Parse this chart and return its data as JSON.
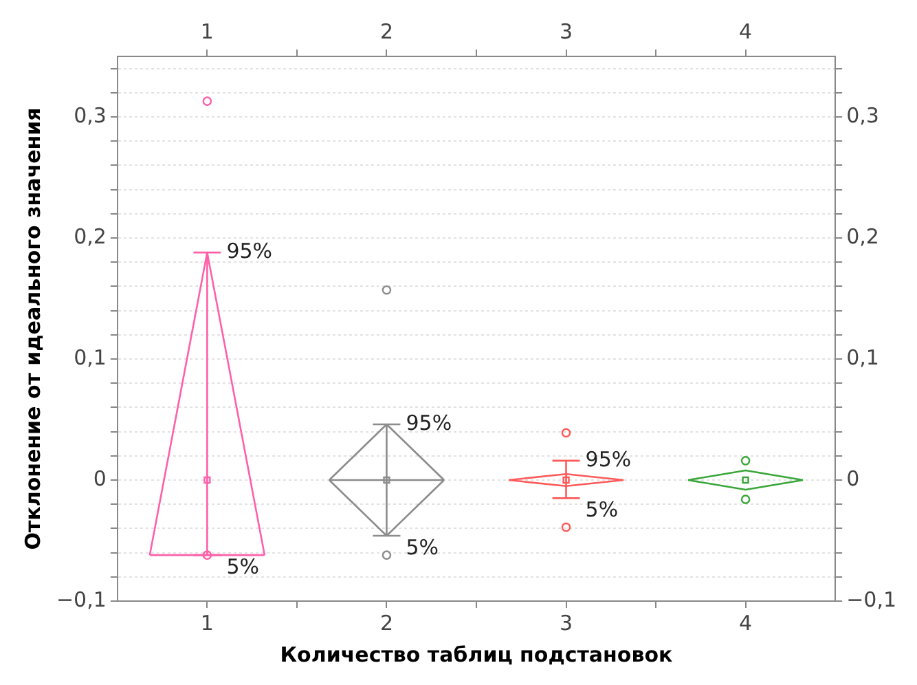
{
  "chart_data": {
    "type": "scatter",
    "xlabel": "Количество таблиц подстановок",
    "ylabel": "Отклонение от идеального значения",
    "xlim": [
      0.5,
      4.5
    ],
    "xticks": [
      1,
      {
        "value": 1.5,
        "label": null
      },
      2,
      {
        "value": 2.5,
        "label": null
      },
      3,
      {
        "value": 3.5,
        "label": null
      },
      4
    ],
    "x2lim": [
      0.5,
      4.5
    ],
    "x2ticks": [
      1,
      {
        "value": 1.5,
        "label": null
      },
      2,
      {
        "value": 2.5,
        "label": null
      },
      3,
      {
        "value": 3.5,
        "label": null
      },
      4
    ],
    "ylim": [
      -0.1,
      0.35
    ],
    "yticks": [
      {
        "value": -0.1,
        "label": "−0,1"
      },
      {
        "value": -0.08,
        "label": null
      },
      {
        "value": -0.06,
        "label": null
      },
      {
        "value": -0.04,
        "label": null
      },
      {
        "value": -0.02,
        "label": null
      },
      0,
      {
        "value": 0.02,
        "label": null
      },
      {
        "value": 0.04,
        "label": null
      },
      {
        "value": 0.06,
        "label": null
      },
      {
        "value": 0.08,
        "label": null
      },
      {
        "value": 0.1,
        "label": "0,1"
      },
      {
        "value": 0.12,
        "label": null
      },
      {
        "value": 0.14,
        "label": null
      },
      {
        "value": 0.16,
        "label": null
      },
      {
        "value": 0.18,
        "label": null
      },
      {
        "value": 0.2,
        "label": "0,2"
      },
      {
        "value": 0.22,
        "label": null
      },
      {
        "value": 0.24,
        "label": null
      },
      {
        "value": 0.26,
        "label": null
      },
      {
        "value": 0.28,
        "label": null
      },
      {
        "value": 0.3,
        "label": "0,3"
      },
      {
        "value": 0.32,
        "label": null
      },
      {
        "value": 0.34,
        "label": null
      }
    ],
    "y2lim": [
      -0.1,
      0.35
    ],
    "y2ticks": [
      {
        "value": -0.1,
        "label": "−0,1"
      },
      {
        "value": -0.08,
        "label": null
      },
      {
        "value": -0.06,
        "label": null
      },
      {
        "value": -0.04,
        "label": null
      },
      {
        "value": -0.02,
        "label": null
      },
      0,
      {
        "value": 0.02,
        "label": null
      },
      {
        "value": 0.04,
        "label": null
      },
      {
        "value": 0.06,
        "label": null
      },
      {
        "value": 0.08,
        "label": null
      },
      {
        "value": 0.1,
        "label": "0,1"
      },
      {
        "value": 0.12,
        "label": null
      },
      {
        "value": 0.14,
        "label": null
      },
      {
        "value": 0.16,
        "label": null
      },
      {
        "value": 0.18,
        "label": null
      },
      {
        "value": 0.2,
        "label": "0,2"
      },
      {
        "value": 0.22,
        "label": null
      },
      {
        "value": 0.24,
        "label": null
      },
      {
        "value": 0.26,
        "label": null
      },
      {
        "value": 0.28,
        "label": null
      },
      {
        "value": 0.3,
        "label": "0,3"
      },
      {
        "value": 0.32,
        "label": null
      },
      {
        "value": 0.34,
        "label": null
      }
    ],
    "grid": "y",
    "legend": false,
    "series": [
      {
        "type": "line",
        "marker": "none",
        "color": "#ff5fa8",
        "x": [
          0.68,
          1,
          1.32
        ],
        "values": [
          -0.062,
          0.188,
          -0.062
        ]
      },
      {
        "type": "line",
        "marker": "none",
        "color": "#ff5fa8",
        "x": [
          0.68,
          1.32
        ],
        "values": [
          -0.062,
          -0.062
        ]
      },
      {
        "type": "line",
        "marker": "none",
        "color": "#8c8c8c",
        "x": [
          1.68,
          2,
          2.32
        ],
        "values": [
          0,
          0.046,
          0
        ]
      },
      {
        "type": "line",
        "marker": "none",
        "color": "#8c8c8c",
        "x": [
          1.68,
          2,
          2.32
        ],
        "values": [
          0,
          -0.046,
          0
        ]
      },
      {
        "type": "line",
        "marker": "none",
        "color": "#8c8c8c",
        "x": [
          1.68,
          2.32
        ],
        "values": [
          0,
          0
        ]
      },
      {
        "type": "line",
        "marker": "none",
        "color": "#ff5a5a",
        "x": [
          2.68,
          3,
          3.32
        ],
        "values": [
          0,
          0.005,
          0
        ]
      },
      {
        "type": "line",
        "marker": "none",
        "color": "#ff5a5a",
        "x": [
          2.68,
          3,
          3.32
        ],
        "values": [
          0,
          -0.005,
          0
        ]
      },
      {
        "type": "line",
        "marker": "none",
        "color": "#3aa63a",
        "x": [
          3.68,
          4,
          4.32
        ],
        "values": [
          0,
          0.008,
          0
        ]
      },
      {
        "type": "line",
        "marker": "none",
        "color": "#3aa63a",
        "x": [
          3.68,
          4,
          4.32
        ],
        "values": [
          0,
          -0.008,
          0
        ]
      },
      {
        "marker": "circle",
        "color": "#ff5fa8",
        "x": [
          1,
          1
        ],
        "values": [
          0.313,
          -0.062
        ]
      },
      {
        "marker": "circle",
        "color": "#8c8c8c",
        "x": [
          2,
          2
        ],
        "values": [
          0.157,
          -0.062
        ]
      },
      {
        "marker": "circle",
        "color": "#ff5a5a",
        "x": [
          3,
          3
        ],
        "values": [
          0.039,
          -0.039
        ]
      },
      {
        "marker": "circle",
        "color": "#3aa63a",
        "x": [
          4,
          4
        ],
        "values": [
          0.016,
          -0.016
        ]
      },
      {
        "marker": "square",
        "colors": [
          "#ff5fa8",
          "#8c8c8c",
          "#ff5a5a",
          "#3aa63a"
        ],
        "x": [
          1,
          2,
          3,
          4
        ],
        "values": [
          0,
          0,
          0,
          0
        ],
        "errors": [
          [
            -0.062,
            0.188
          ],
          [
            -0.046,
            0.046
          ],
          [
            -0.015,
            0.016
          ],
          null
        ]
      }
    ],
    "annotations": [
      {
        "text": "95%",
        "x": 1,
        "y": 0.188
      },
      {
        "text": "5%",
        "x": 1,
        "y": -0.062
      },
      {
        "text": "95%",
        "x": 2,
        "y": 0.046
      },
      {
        "text": "5%",
        "x": 2,
        "y": -0.046
      },
      {
        "text": "95%",
        "x": 3,
        "y": 0.016
      },
      {
        "text": "5%",
        "x": 3,
        "y": -0.015
      }
    ]
  }
}
